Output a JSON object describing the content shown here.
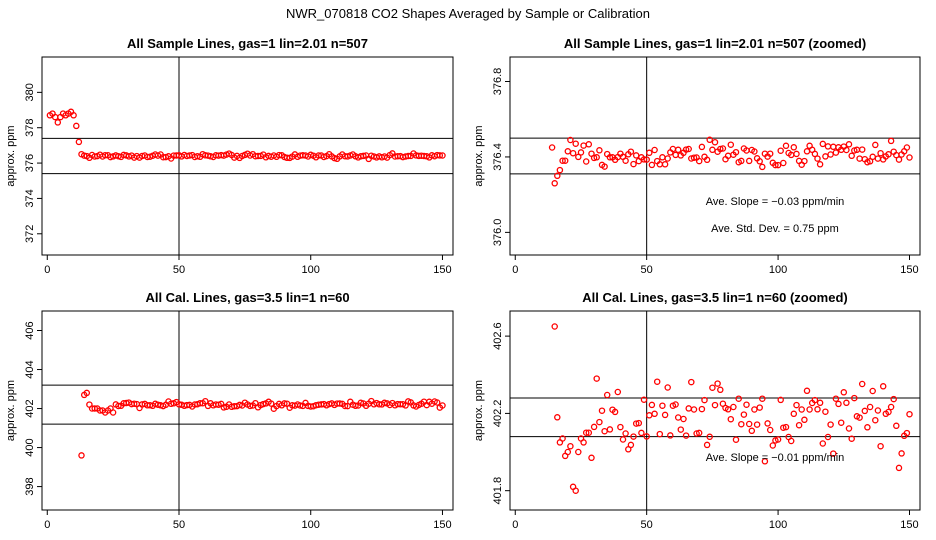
{
  "figure_title": "NWR_070818  CO2 Shapes Averaged by Sample or Calibration",
  "chart_data": [
    {
      "type": "scatter",
      "title": "All Sample Lines, gas=1 lin=2.01 n=507",
      "ylabel": "approx. ppm",
      "xlabel": "",
      "xlim": [
        -2,
        154
      ],
      "ylim": [
        370.8,
        382
      ],
      "xticks": [
        0,
        50,
        100,
        150
      ],
      "yticks": [
        372,
        374,
        376,
        378,
        380
      ],
      "vline": 50,
      "hlines": [
        377.4,
        375.4
      ],
      "marker_color": "#ff0000",
      "annotations": [],
      "generator": "flat",
      "x_start": 1,
      "x_end": 150,
      "early_points": [
        [
          1,
          378.7
        ],
        [
          2,
          378.8
        ],
        [
          3,
          378.6
        ],
        [
          4,
          378.3
        ],
        [
          5,
          378.6
        ],
        [
          6,
          378.8
        ],
        [
          7,
          378.7
        ],
        [
          8,
          378.8
        ],
        [
          9,
          378.9
        ],
        [
          10,
          378.7
        ],
        [
          11,
          378.1
        ],
        [
          12,
          377.2
        ],
        [
          13,
          376.5
        ]
      ],
      "base": 376.4,
      "noise": 0.06
    },
    {
      "type": "scatter",
      "title": "All Sample Lines, gas=1 lin=2.01 n=507 (zoomed)",
      "ylabel": "approx. ppm",
      "xlabel": "",
      "xlim": [
        -2,
        154
      ],
      "ylim": [
        375.88,
        376.93
      ],
      "xticks": [
        0,
        50,
        100,
        150
      ],
      "yticks": [
        376.0,
        376.4,
        376.8
      ],
      "vline": 50,
      "hlines": [
        376.5,
        376.31
      ],
      "marker_color": "#ff0000",
      "annotations": [
        "Ave. Slope =  −0.03  ppm/min",
        "Ave. Std. Dev. =  0.75  ppm"
      ],
      "generator": "noisy",
      "x_start": 14,
      "x_end": 150,
      "early_points": [
        [
          14,
          376.45
        ],
        [
          15,
          376.26
        ],
        [
          16,
          376.3
        ],
        [
          17,
          376.33
        ],
        [
          18,
          376.38
        ],
        [
          19,
          376.38
        ],
        [
          20,
          376.43
        ],
        [
          21,
          376.49
        ],
        [
          22,
          376.42
        ],
        [
          23,
          376.47
        ],
        [
          24,
          376.4
        ]
      ],
      "base": 376.41,
      "noise": 0.03
    },
    {
      "type": "scatter",
      "title": "All Cal. Lines, gas=3.5 lin=1 n=60",
      "ylabel": "approx. ppm",
      "xlabel": "",
      "xlim": [
        -2,
        154
      ],
      "ylim": [
        396.8,
        407.0
      ],
      "xticks": [
        0,
        50,
        100,
        150
      ],
      "yticks": [
        398,
        400,
        402,
        404,
        406
      ],
      "vline": 50,
      "hlines": [
        403.2,
        401.2
      ],
      "marker_color": "#ff0000",
      "annotations": [],
      "generator": "flat",
      "x_start": 13,
      "x_end": 150,
      "early_points": [
        [
          13,
          399.6
        ],
        [
          14,
          402.7
        ],
        [
          15,
          402.8
        ],
        [
          16,
          402.2
        ],
        [
          17,
          402.0
        ],
        [
          18,
          402.0
        ],
        [
          19,
          402.0
        ],
        [
          20,
          401.9
        ],
        [
          21,
          401.9
        ],
        [
          22,
          401.8
        ],
        [
          23,
          401.9
        ],
        [
          24,
          402.0
        ],
        [
          25,
          401.8
        ]
      ],
      "base": 402.2,
      "noise": 0.08
    },
    {
      "type": "scatter",
      "title": "All Cal. Lines, gas=3.5 lin=1 n=60 (zoomed)",
      "ylabel": "approx. ppm",
      "xlabel": "",
      "xlim": [
        -2,
        154
      ],
      "ylim": [
        401.7,
        402.73
      ],
      "xticks": [
        0,
        50,
        100,
        150
      ],
      "yticks": [
        401.8,
        402.2,
        402.6
      ],
      "vline": 50,
      "hlines": [
        402.28,
        402.08
      ],
      "marker_color": "#ff0000",
      "annotations": [
        "Ave. Slope =  −0.01  ppm/min"
      ],
      "generator": "noisy",
      "x_start": 15,
      "x_end": 150,
      "early_points": [
        [
          15,
          402.65
        ],
        [
          16,
          402.18
        ],
        [
          17,
          402.05
        ],
        [
          18,
          402.07
        ],
        [
          19,
          401.98
        ],
        [
          20,
          402.0
        ],
        [
          21,
          402.03
        ],
        [
          22,
          401.82
        ],
        [
          23,
          401.8
        ],
        [
          24,
          402.0
        ],
        [
          25,
          402.07
        ],
        [
          26,
          402.05
        ],
        [
          27,
          402.1
        ],
        [
          28,
          402.1
        ],
        [
          29,
          401.97
        ],
        [
          30,
          402.13
        ],
        [
          31,
          402.38
        ]
      ],
      "base": 402.17,
      "noise": 0.09
    }
  ]
}
